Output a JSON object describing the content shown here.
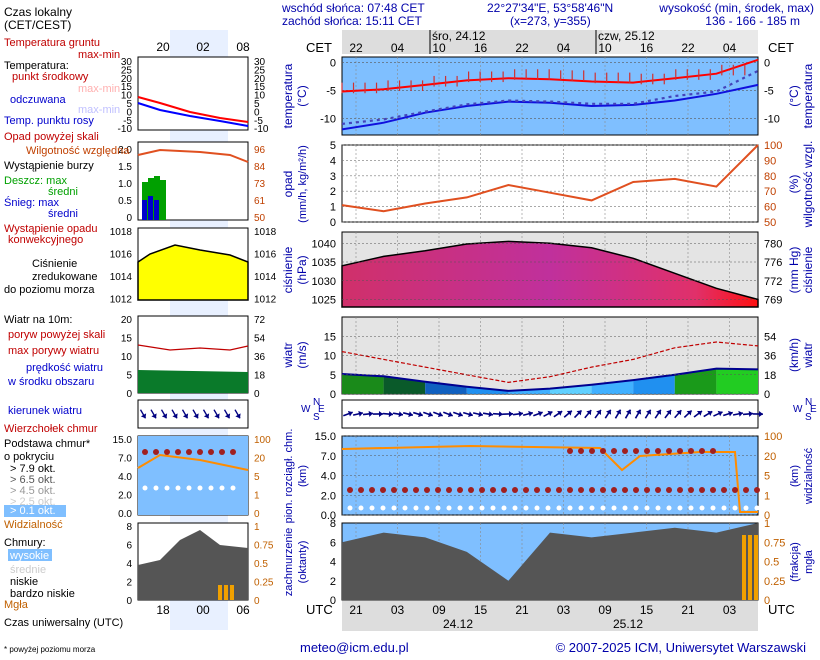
{
  "header": {
    "sunrise": "wschód słońca: 07:48 CET",
    "sunset": "zachód słońca: 15:11 CET",
    "coords": "22°27'34\"E, 53°58'46\"N",
    "grid": "(x=273, y=355)",
    "elev_title": "wysokość (min, środek, max)",
    "elev_values": "136 - 166 - 185 m"
  },
  "legend": {
    "local_time": "Czas lokalny",
    "local_time_sub": "(CET/CEST)",
    "soil_temp": "Temperatura gruntu",
    "max_min": "max-min",
    "temperature": "Temperatura:",
    "mid_point": "punkt środkowy",
    "max_min2": "max-min",
    "felt": "odczuwana",
    "max_min3": "max-min",
    "dewpoint": "Temp. punktu rosy",
    "precip_over": "Opad powyżej skali",
    "storm": "Wystąpienie burzy",
    "rel_humidity": "Wilgotność względna",
    "rain_max": "Deszcz: max",
    "rain_mean": "średni",
    "snow_max": "Śnieg:    max",
    "snow_mean": "średni",
    "conv_precip1": "Wystąpienie opadu",
    "conv_precip2": "konwekcyjnego",
    "pressure1": "Ciśnienie",
    "pressure2": "zredukowane",
    "pressure3": "do poziomu morza",
    "wind10": "Wiatr na 10m:",
    "gust_over": "poryw powyżej skali",
    "max_gust": "max porywy wiatru",
    "wind_mean1": "prędkość wiatru",
    "wind_mean2": "w środku obszaru",
    "wind_dir": "kierunek wiatru",
    "cloud_top": "Wierzchołek chmur",
    "cloud_base1": "Podstawa chmur*",
    "cloud_base2": "o pokryciu",
    "okt79": "> 7.9 okt.",
    "okt65": "> 6.5 okt.",
    "okt45": "> 4.5 okt.",
    "okt25": "> 2.5 okt.",
    "okt01": "> 0.1 okt.",
    "visibility": "Widzialność",
    "clouds": "Chmury:",
    "high": "wysokie",
    "mid": "średnie",
    "low": "niskie",
    "very_low": "bardzo niskie",
    "fog": "Mgła",
    "utc_label": "Czas uniwersalny (UTC)",
    "footnote": "* powyżej poziomu morza"
  },
  "axes": {
    "cet": "CET",
    "utc": "UTC",
    "day1": "śro, 24.12",
    "day2": "czw, 25.12",
    "day1_utc": "24.12",
    "day2_utc": "25.12",
    "top_hours": [
      "22",
      "04",
      "10",
      "16",
      "22",
      "04",
      "10",
      "16",
      "22",
      "04"
    ],
    "bottom_hours": [
      "21",
      "03",
      "09",
      "15",
      "21",
      "03",
      "09",
      "15",
      "21",
      "03"
    ],
    "small_top_hours": [
      "20",
      "02",
      "08"
    ],
    "small_bottom_hours": [
      "18",
      "00",
      "06"
    ],
    "temp_ticks": [
      "0",
      "-5",
      "-10"
    ],
    "precip_ticks": [
      "5",
      "4",
      "3",
      "2",
      "1",
      "0"
    ],
    "humid_ticks": [
      "100",
      "90",
      "80",
      "70",
      "60",
      "50"
    ],
    "press_ticks": [
      "1040",
      "1035",
      "1030",
      "1025"
    ],
    "press_mmhg": [
      "780",
      "776",
      "772",
      "769"
    ],
    "wind_ticks": [
      "15",
      "10",
      "5",
      "0"
    ],
    "wind_kmh": [
      "54",
      "36",
      "18",
      "0"
    ],
    "cloud_ticks": [
      "15.0",
      "7.0",
      "4.0",
      "2.0",
      "0.0"
    ],
    "vis_ticks": [
      "100",
      "20",
      "5",
      "1",
      "0"
    ],
    "okt_ticks": [
      "8",
      "6",
      "4",
      "2",
      "0"
    ],
    "fog_ticks": [
      "1",
      "0.75",
      "0.5",
      "0.25",
      "0"
    ],
    "small_temp_ticks": [
      "30",
      "25",
      "20",
      "15",
      "10",
      "5",
      "0",
      "-5",
      "-10"
    ],
    "small_temp_right": [
      "30",
      "25",
      "20",
      "15",
      "10",
      "5",
      "0",
      "-5",
      "-10"
    ],
    "small_rain_ticks": [
      "2.0",
      "1.5",
      "1.0",
      "0.5",
      "0"
    ],
    "small_hum_ticks": [
      "96",
      "84",
      "73",
      "61",
      "50"
    ],
    "small_press_ticks": [
      "1018",
      "1016",
      "1014",
      "1012"
    ],
    "small_wind_ticks": [
      "20",
      "15",
      "10",
      "5",
      "0"
    ],
    "small_wind_right": [
      "72",
      "54",
      "36",
      "18",
      "0"
    ],
    "small_cloud_ticks": [
      "15.0",
      "7.0",
      "4.0",
      "2.0",
      "0.0"
    ],
    "small_cloud_right": [
      "100",
      "20",
      "5",
      "1",
      "0"
    ],
    "small_okt_ticks": [
      "8",
      "6",
      "4",
      "2",
      "0"
    ],
    "small_fog_right": [
      "1",
      "0.75",
      "0.5",
      "0.25",
      "0"
    ]
  },
  "labels": {
    "temp_l": "temperatura",
    "temp_unit": "(°C)",
    "precip_l": "opad",
    "precip_unit": "(mm/h, kg/m²/h)",
    "hum_l": "wilgotność wzgl.",
    "hum_unit": "(%)",
    "press_l": "ciśnienie",
    "press_unit": "(hPa)",
    "press_unit2": "(mm Hg)",
    "wind_l": "wiatr",
    "wind_unit": "(m/s)",
    "wind_unit2": "(km/h)",
    "cloud_l1": "pion. rozciągł. chm.",
    "cloud_unit": "(km)",
    "vis_l": "widzialność",
    "vis_unit": "(km)",
    "cover_l1": "zachmurzenie",
    "cover_unit": "(oktanty)",
    "fog_l": "mgła",
    "fog_unit": "(frakcja)",
    "compass": "N",
    "compass_w": "W",
    "compass_e": "E",
    "compass_s": "S"
  },
  "footer": {
    "email": "meteo@icm.edu.pl",
    "copyright": "© 2007-2025 ICM, Uniwersytet Warszawski"
  },
  "colors": {
    "temp": "#ff0000",
    "dew": "#0000ff",
    "felt": "#3333cc",
    "humid": "#e05020",
    "rain": "#00a000",
    "press": "#c01890",
    "wind_max": "#c00000",
    "vis": "#ff8c00",
    "panel": "#7fbfff"
  },
  "chart_data": [
    {
      "type": "line",
      "title": "temperatura (°C)",
      "x": [
        0,
        6,
        12,
        18,
        24,
        30,
        36,
        42,
        48,
        54,
        60
      ],
      "series": [
        {
          "name": "punkt środkowy",
          "values": [
            -5.2,
            -4.8,
            -4.0,
            -3.2,
            -2.8,
            -3.0,
            -3.4,
            -3.6,
            -2.8,
            -2.0,
            0.5
          ]
        },
        {
          "name": "punkt rosy",
          "values": [
            -12.0,
            -10.8,
            -9.0,
            -7.8,
            -7.0,
            -7.2,
            -7.8,
            -7.6,
            -6.8,
            -5.6,
            -4.0
          ]
        },
        {
          "name": "odczuwana",
          "values": [
            -11.0,
            -10.2,
            -8.8,
            -7.5,
            -6.8,
            -7.0,
            -7.4,
            -7.4,
            -6.0,
            -5.2,
            -1.5
          ]
        }
      ],
      "ylim": [
        -13,
        1
      ]
    },
    {
      "type": "line",
      "title": "wilgotność wzgl. (%)",
      "x": [
        0,
        6,
        12,
        18,
        24,
        30,
        36,
        42,
        48,
        54,
        60
      ],
      "series": [
        {
          "name": "wilgotność",
          "values": [
            61,
            57,
            62,
            66,
            74,
            69,
            64,
            76,
            78,
            73,
            100
          ]
        }
      ],
      "ylim": [
        50,
        100
      ]
    },
    {
      "type": "area",
      "title": "ciśnienie (hPa)",
      "x": [
        0,
        6,
        12,
        18,
        24,
        30,
        36,
        42,
        48,
        54,
        60
      ],
      "values": [
        1034.0,
        1036.5,
        1038.0,
        1039.8,
        1040.5,
        1040.0,
        1038.8,
        1036.0,
        1032.0,
        1028.0,
        1025.0
      ],
      "ylim": [
        1023,
        1043
      ]
    },
    {
      "type": "line",
      "title": "wiatr (m/s)",
      "x": [
        0,
        6,
        12,
        18,
        24,
        30,
        36,
        42,
        48,
        54,
        60
      ],
      "series": [
        {
          "name": "prędkość",
          "values": [
            5.2,
            4.6,
            3.2,
            1.9,
            0.8,
            1.4,
            2.4,
            3.6,
            5.0,
            6.6,
            6.4
          ]
        },
        {
          "name": "porywy",
          "values": [
            11.0,
            9.0,
            7.0,
            5.0,
            3.0,
            4.5,
            7.0,
            9.0,
            12.0,
            13.5,
            12.5
          ]
        }
      ],
      "ylim": [
        0,
        20
      ]
    },
    {
      "type": "area",
      "title": "zachmurzenie (oktanty)",
      "x": [
        0,
        6,
        12,
        18,
        24,
        30,
        36,
        42,
        48,
        54,
        60
      ],
      "values": [
        6.0,
        7.0,
        6.5,
        5.0,
        2.0,
        7.0,
        6.5,
        7.0,
        7.5,
        7.0,
        8.0
      ],
      "ylim": [
        0,
        8
      ]
    }
  ]
}
